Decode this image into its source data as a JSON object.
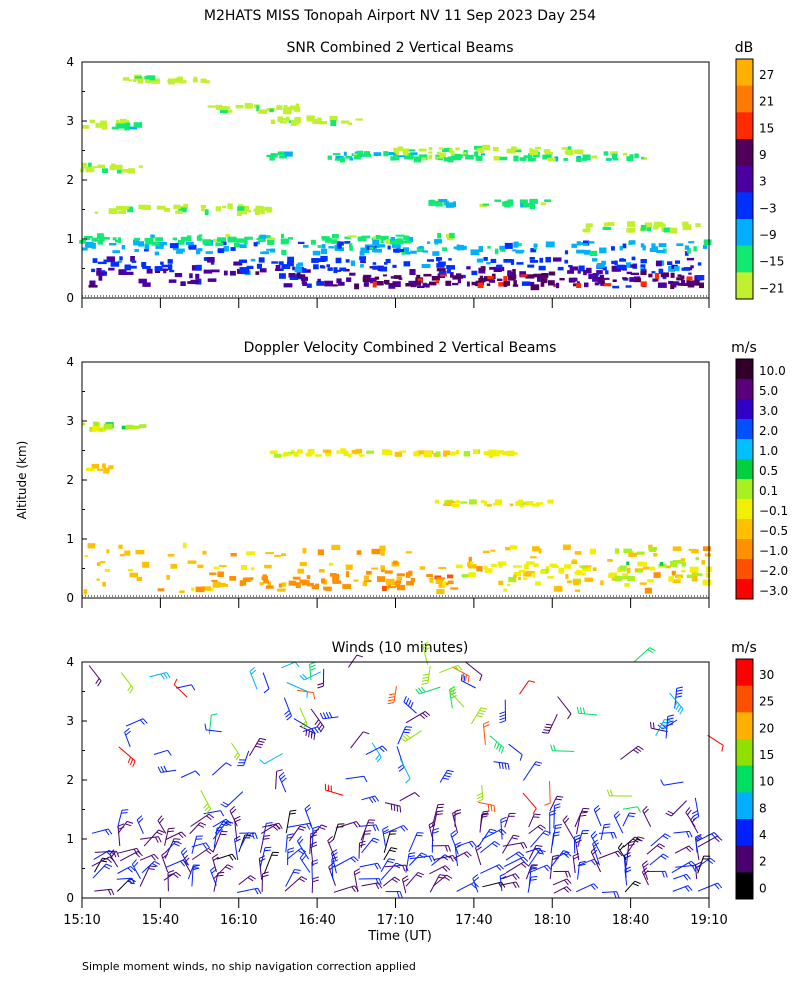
{
  "title": "M2HATS MISS Tonopah Airport NV  11 Sep 2023 Day 254",
  "ylabel": "Altitude (km)",
  "xlabel": "Time (UT)",
  "footnote": "Simple moment winds, no ship navigation correction applied",
  "chart_data": [
    {
      "type": "heatmap",
      "title": "SNR Combined 2 Vertical Beams",
      "colorbar_unit": "dB",
      "colorbar_labels": [
        "27",
        "21",
        "15",
        "9",
        "3",
        "−3",
        "−9",
        "−15",
        "−21"
      ],
      "colors": [
        "#ffb000",
        "#ff7a00",
        "#ff2a00",
        "#50005a",
        "#4a00a0",
        "#0030ff",
        "#00b0ff",
        "#10ea70",
        "#c0f030"
      ],
      "xlim": [
        "15:10",
        "19:10"
      ],
      "ylim": [
        0,
        4
      ],
      "yticks": [
        "0",
        "1",
        "2",
        "3",
        "4"
      ],
      "layers": [
        {
          "t0": 0.0,
          "t1": 1.0,
          "alt": 0.35,
          "thick": 0.35,
          "level": 4
        },
        {
          "t0": 0.0,
          "t1": 1.0,
          "alt": 0.55,
          "thick": 0.25,
          "level": 5
        },
        {
          "t0": 0.0,
          "t1": 1.0,
          "alt": 0.85,
          "thick": 0.2,
          "level": 6
        },
        {
          "t0": 0.0,
          "t1": 0.6,
          "alt": 1.0,
          "thick": 0.12,
          "level": 7
        },
        {
          "t0": 0.4,
          "t1": 1.0,
          "alt": 0.3,
          "thick": 0.18,
          "level": 3
        },
        {
          "t0": 0.0,
          "t1": 0.08,
          "alt": 2.95,
          "thick": 0.12,
          "level": 8
        },
        {
          "t0": 0.05,
          "t1": 0.1,
          "alt": 2.9,
          "thick": 0.1,
          "level": 7
        },
        {
          "t0": 0.2,
          "t1": 0.35,
          "alt": 3.2,
          "thick": 0.12,
          "level": 8
        },
        {
          "t0": 0.3,
          "t1": 0.45,
          "alt": 3.0,
          "thick": 0.1,
          "level": 8
        },
        {
          "t0": 0.3,
          "t1": 0.9,
          "alt": 2.4,
          "thick": 0.12,
          "level": 7
        },
        {
          "t0": 0.5,
          "t1": 0.8,
          "alt": 2.5,
          "thick": 0.1,
          "level": 8
        },
        {
          "t0": 0.55,
          "t1": 0.75,
          "alt": 1.6,
          "thick": 0.1,
          "level": 7
        },
        {
          "t0": 0.0,
          "t1": 0.1,
          "alt": 2.2,
          "thick": 0.12,
          "level": 8
        },
        {
          "t0": 0.0,
          "t1": 0.3,
          "alt": 1.5,
          "thick": 0.12,
          "level": 8
        },
        {
          "t0": 0.05,
          "t1": 0.2,
          "alt": 3.7,
          "thick": 0.1,
          "level": 8
        },
        {
          "t0": 0.8,
          "t1": 1.0,
          "alt": 1.2,
          "thick": 0.12,
          "level": 8
        }
      ]
    },
    {
      "type": "heatmap",
      "title": "Doppler Velocity Combined 2 Vertical Beams",
      "colorbar_unit": "m/s",
      "colorbar_labels": [
        "10.0",
        "5.0",
        "3.0",
        "2.0",
        "1.0",
        "0.5",
        "0.1",
        "−0.1",
        "−0.5",
        "−1.0",
        "−2.0",
        "−3.0"
      ],
      "colors": [
        "#30002a",
        "#5a007a",
        "#3000c8",
        "#0050ff",
        "#00c0ff",
        "#00d040",
        "#a8f020",
        "#f0f000",
        "#ffc000",
        "#ff9000",
        "#ff5000",
        "#ff0000"
      ],
      "xlim": [
        "15:10",
        "19:10"
      ],
      "ylim": [
        0,
        4
      ],
      "yticks": [
        "0",
        "1",
        "2",
        "3",
        "4"
      ],
      "layers": [
        {
          "t0": 0.0,
          "t1": 1.0,
          "alt": 0.5,
          "thick": 0.8,
          "level": 8
        },
        {
          "t0": 0.2,
          "t1": 0.6,
          "alt": 0.3,
          "thick": 0.3,
          "level": 9
        },
        {
          "t0": 0.6,
          "t1": 1.0,
          "alt": 0.4,
          "thick": 0.4,
          "level": 7
        },
        {
          "t0": 0.85,
          "t1": 1.0,
          "alt": 0.6,
          "thick": 0.6,
          "level": 6
        },
        {
          "t0": 0.0,
          "t1": 0.1,
          "alt": 2.9,
          "thick": 0.1,
          "level": 6
        },
        {
          "t0": 0.3,
          "t1": 0.7,
          "alt": 2.45,
          "thick": 0.08,
          "level": 7
        },
        {
          "t0": 0.55,
          "t1": 0.75,
          "alt": 1.6,
          "thick": 0.08,
          "level": 7
        },
        {
          "t0": 0.0,
          "t1": 0.05,
          "alt": 2.2,
          "thick": 0.1,
          "level": 8
        }
      ]
    },
    {
      "type": "wind_barbs",
      "title": "Winds (10 minutes)",
      "colorbar_unit": "m/s",
      "colorbar_labels": [
        "30",
        "25",
        "20",
        "15",
        "10",
        "8",
        "4",
        "2",
        "0"
      ],
      "colors": [
        "#ff0000",
        "#ff5000",
        "#ffb000",
        "#90e000",
        "#00e060",
        "#00b0ff",
        "#0020ff",
        "#4a0070",
        "#000000"
      ],
      "xlim": [
        "15:10",
        "19:10"
      ],
      "ylim": [
        0,
        4
      ],
      "yticks": [
        "0",
        "1",
        "2",
        "3",
        "4"
      ],
      "xticks": [
        "15:10",
        "15:40",
        "16:10",
        "16:40",
        "17:10",
        "17:40",
        "18:10",
        "18:40",
        "19:10"
      ]
    }
  ]
}
